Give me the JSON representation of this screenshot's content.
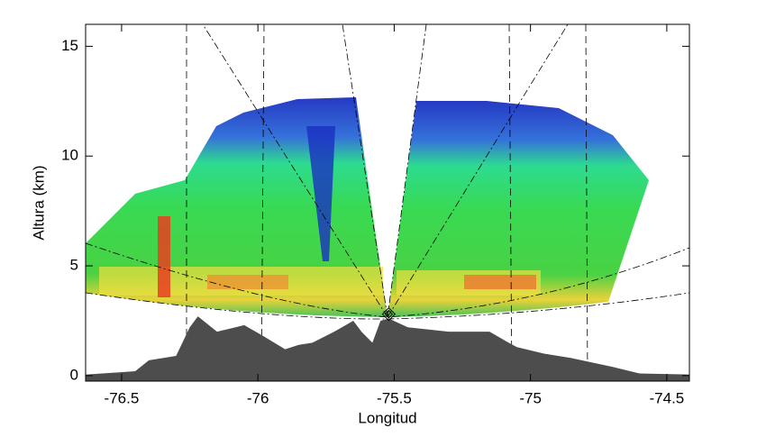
{
  "chart_data": {
    "type": "radar-cross-section",
    "xlabel": "Longitud",
    "ylabel": "Altura (km)",
    "xlim": [
      -76.632,
      -74.417
    ],
    "ylim": [
      -0.25,
      16
    ],
    "xticks": [
      -76.5,
      -76,
      -75.5,
      -75,
      -74.5
    ],
    "yticks": [
      0,
      5,
      10,
      15
    ],
    "terrain": {
      "color": "#4d4d4d",
      "x": [
        -76.632,
        -76.45,
        -76.4,
        -76.3,
        -76.25,
        -76.22,
        -76.15,
        -76.05,
        -75.98,
        -75.9,
        -75.85,
        -75.8,
        -75.72,
        -75.65,
        -75.62,
        -75.58,
        -75.55,
        -75.52,
        -75.45,
        -75.3,
        -75.15,
        -75.08,
        -75.05,
        -74.95,
        -74.85,
        -74.7,
        -74.6,
        -74.417
      ],
      "y": [
        0.05,
        0.2,
        0.7,
        0.9,
        2.2,
        2.7,
        2.0,
        2.3,
        1.8,
        1.2,
        1.4,
        1.5,
        2.0,
        2.5,
        2.0,
        1.5,
        2.5,
        2.6,
        2.2,
        2.0,
        2.0,
        1.5,
        1.3,
        1.0,
        0.8,
        0.4,
        0.1,
        0.05
      ]
    },
    "radar": {
      "lon": -75.52,
      "alt": 2.8
    }
  }
}
